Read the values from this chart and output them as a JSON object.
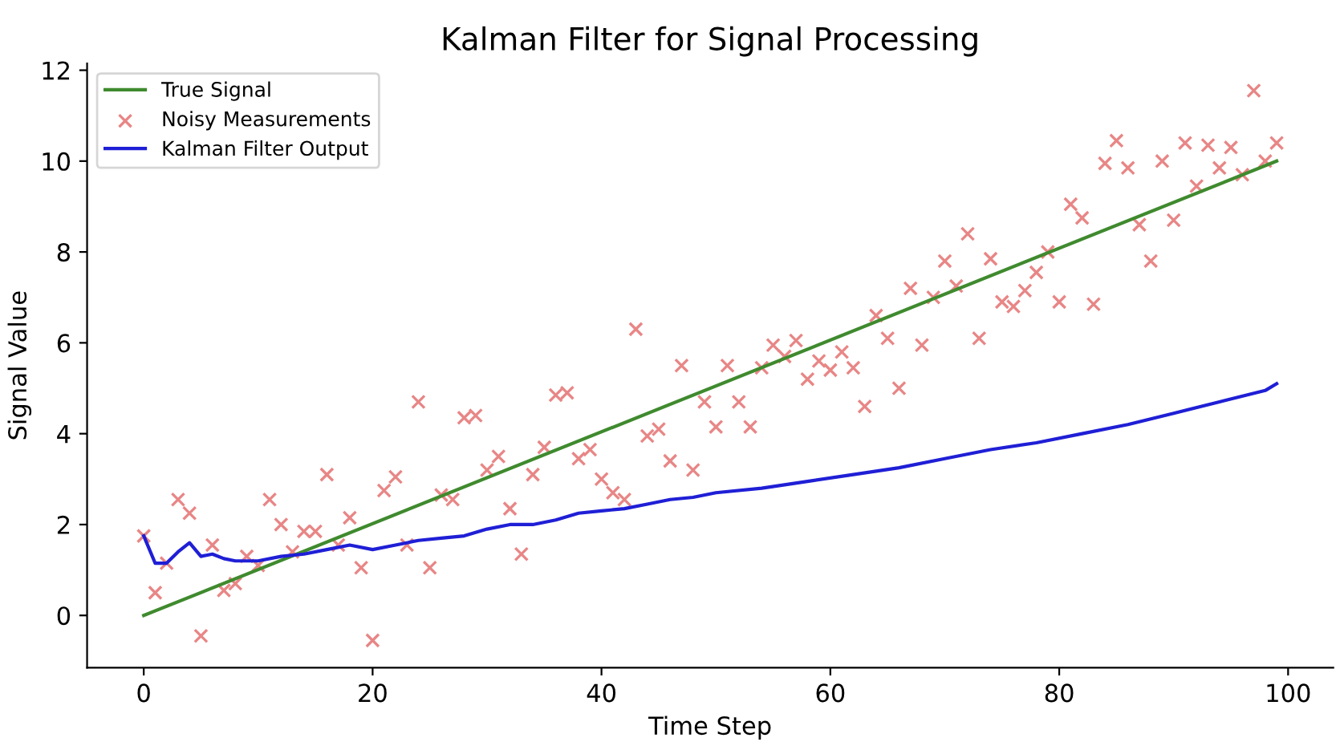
{
  "chart_data": {
    "type": "line",
    "title": "Kalman Filter for Signal Processing",
    "xlabel": "Time Step",
    "ylabel": "Signal Value",
    "xlim": [
      -4.95,
      103.95
    ],
    "ylim": [
      -1.15,
      12.15
    ],
    "xticks": [
      0,
      20,
      40,
      60,
      80,
      100
    ],
    "yticks": [
      0,
      2,
      4,
      6,
      8,
      10,
      12
    ],
    "grid": false,
    "legend": "top left",
    "series": [
      {
        "name": "True Signal",
        "type": "line",
        "color": "#3f8a2e",
        "x": [
          0,
          99
        ],
        "values": [
          0,
          10
        ]
      },
      {
        "name": "Noisy Measurements",
        "type": "scatter",
        "marker": "cross",
        "color": "#e88686",
        "x": [
          0,
          1,
          2,
          3,
          4,
          5,
          6,
          7,
          8,
          9,
          10,
          11,
          12,
          13,
          14,
          15,
          16,
          17,
          18,
          19,
          20,
          21,
          22,
          23,
          24,
          25,
          26,
          27,
          28,
          29,
          30,
          31,
          32,
          33,
          34,
          35,
          36,
          37,
          38,
          39,
          40,
          41,
          42,
          43,
          44,
          45,
          46,
          47,
          48,
          49,
          50,
          51,
          52,
          53,
          54,
          55,
          56,
          57,
          58,
          59,
          60,
          61,
          62,
          63,
          64,
          65,
          66,
          67,
          68,
          69,
          70,
          71,
          72,
          73,
          74,
          75,
          76,
          77,
          78,
          79,
          80,
          81,
          82,
          83,
          84,
          85,
          86,
          87,
          88,
          89,
          90,
          91,
          92,
          93,
          94,
          95,
          96,
          97,
          98,
          99
        ],
        "values": [
          1.75,
          0.5,
          1.15,
          2.55,
          2.25,
          -0.45,
          1.55,
          0.55,
          0.7,
          1.3,
          1.1,
          2.55,
          2.0,
          1.4,
          1.85,
          1.85,
          3.1,
          1.55,
          2.15,
          1.05,
          -0.55,
          2.75,
          3.05,
          1.55,
          4.7,
          1.05,
          2.65,
          2.55,
          4.35,
          4.4,
          3.2,
          3.5,
          2.35,
          1.35,
          3.1,
          3.7,
          4.85,
          4.9,
          3.45,
          3.65,
          3.0,
          2.7,
          2.55,
          6.3,
          3.95,
          4.1,
          3.4,
          5.5,
          3.2,
          4.7,
          4.15,
          5.5,
          4.7,
          4.15,
          5.45,
          5.95,
          5.7,
          6.05,
          5.2,
          5.6,
          5.4,
          5.8,
          5.45,
          4.6,
          6.6,
          6.1,
          5.0,
          7.2,
          5.95,
          7.0,
          7.8,
          7.25,
          8.4,
          6.1,
          7.85,
          6.9,
          6.8,
          7.15,
          7.55,
          8.0,
          6.9,
          9.05,
          8.75,
          6.85,
          9.95,
          10.45,
          9.85,
          8.6,
          7.8,
          10.0,
          8.7,
          10.4,
          9.45,
          10.35,
          9.85,
          10.3,
          9.7,
          11.55,
          10.0,
          10.4
        ]
      },
      {
        "name": "Kalman Filter Output",
        "type": "line",
        "color": "#1f1fd6",
        "x": [
          0,
          1,
          2,
          3,
          4,
          5,
          6,
          7,
          8,
          10,
          12,
          14,
          16,
          18,
          20,
          22,
          24,
          26,
          28,
          30,
          32,
          34,
          36,
          38,
          40,
          42,
          44,
          46,
          48,
          50,
          54,
          58,
          62,
          66,
          70,
          74,
          78,
          82,
          86,
          90,
          94,
          98,
          99
        ],
        "values": [
          1.75,
          1.15,
          1.15,
          1.4,
          1.6,
          1.3,
          1.35,
          1.25,
          1.2,
          1.2,
          1.3,
          1.35,
          1.45,
          1.55,
          1.45,
          1.55,
          1.65,
          1.7,
          1.75,
          1.9,
          2.0,
          2.0,
          2.1,
          2.25,
          2.3,
          2.35,
          2.45,
          2.55,
          2.6,
          2.7,
          2.8,
          2.95,
          3.1,
          3.25,
          3.45,
          3.65,
          3.8,
          4.0,
          4.2,
          4.45,
          4.7,
          4.95,
          5.1
        ]
      }
    ]
  }
}
